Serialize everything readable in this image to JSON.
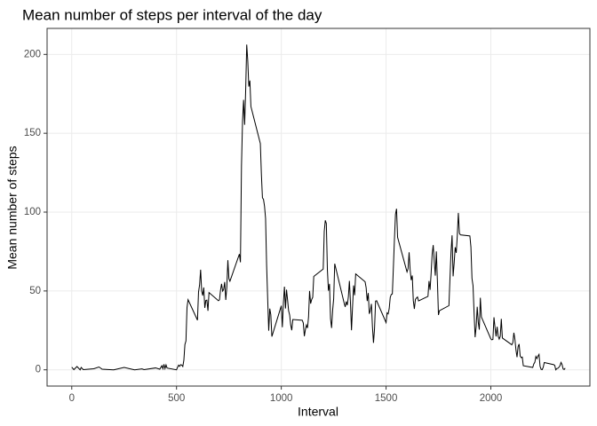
{
  "chart_data": {
    "type": "line",
    "title": "Mean number of steps per interval of the day",
    "x_label": "Interval",
    "y_label": "Mean number of steps",
    "color": "#000000",
    "grid": true,
    "xlim": [
      -117.75,
      2472.75
    ],
    "xticks": [
      0,
      500,
      1000,
      1500,
      2000
    ],
    "ylim": [
      -10.3,
      216.5
    ],
    "yticks": [
      0,
      50,
      100,
      150,
      200
    ],
    "x": [
      0,
      10,
      25,
      40,
      45,
      55,
      105,
      130,
      145,
      200,
      250,
      300,
      335,
      345,
      400,
      420,
      430,
      435,
      440,
      445,
      450,
      455,
      500,
      505,
      510,
      515,
      520,
      525,
      530,
      535,
      540,
      545,
      550,
      555,
      600,
      605,
      610,
      615,
      620,
      625,
      630,
      635,
      640,
      645,
      650,
      655,
      700,
      705,
      710,
      715,
      720,
      725,
      730,
      735,
      740,
      745,
      750,
      755,
      800,
      805,
      810,
      815,
      820,
      825,
      830,
      835,
      840,
      845,
      850,
      855,
      900,
      905,
      910,
      915,
      920,
      925,
      930,
      935,
      940,
      945,
      950,
      955,
      1000,
      1005,
      1010,
      1015,
      1020,
      1025,
      1030,
      1035,
      1040,
      1045,
      1050,
      1055,
      1100,
      1105,
      1110,
      1115,
      1120,
      1125,
      1130,
      1135,
      1140,
      1145,
      1150,
      1155,
      1200,
      1205,
      1210,
      1215,
      1220,
      1225,
      1230,
      1235,
      1240,
      1245,
      1250,
      1255,
      1300,
      1305,
      1310,
      1315,
      1320,
      1325,
      1330,
      1335,
      1340,
      1345,
      1350,
      1355,
      1400,
      1405,
      1410,
      1415,
      1420,
      1425,
      1430,
      1435,
      1440,
      1445,
      1450,
      1455,
      1500,
      1505,
      1510,
      1515,
      1520,
      1525,
      1530,
      1535,
      1540,
      1545,
      1550,
      1555,
      1600,
      1605,
      1610,
      1615,
      1620,
      1625,
      1630,
      1635,
      1640,
      1645,
      1650,
      1655,
      1700,
      1705,
      1710,
      1715,
      1720,
      1725,
      1730,
      1735,
      1740,
      1745,
      1750,
      1755,
      1800,
      1805,
      1810,
      1815,
      1820,
      1825,
      1830,
      1835,
      1840,
      1845,
      1850,
      1855,
      1900,
      1905,
      1910,
      1915,
      1920,
      1925,
      1930,
      1935,
      1940,
      1945,
      1950,
      1955,
      2000,
      2005,
      2010,
      2015,
      2020,
      2025,
      2030,
      2035,
      2040,
      2045,
      2050,
      2055,
      2100,
      2105,
      2110,
      2115,
      2120,
      2125,
      2130,
      2135,
      2140,
      2145,
      2150,
      2155,
      2200,
      2205,
      2210,
      2215,
      2220,
      2225,
      2230,
      2235,
      2240,
      2245,
      2250,
      2255,
      2300,
      2305,
      2310,
      2315,
      2320,
      2325,
      2330,
      2335,
      2340,
      2345,
      2350,
      2355
    ],
    "values": [
      1.7,
      0.1,
      2.1,
      0,
      1.5,
      0.1,
      0.7,
      1.8,
      0.4,
      0,
      1.5,
      0,
      0.6,
      0.1,
      1.2,
      0.4,
      2.6,
      0.7,
      3.5,
      0.8,
      3.1,
      1.1,
      0,
      1.6,
      3,
      2.2,
      3.3,
      3,
      2.1,
      6.1,
      16,
      18.3,
      39.5,
      44.5,
      31.5,
      49.3,
      53.8,
      63.5,
      50,
      47.1,
      52.2,
      39.3,
      44,
      44.2,
      37.4,
      49,
      43.8,
      44.4,
      50.5,
      54.5,
      49.9,
      50.9,
      55.7,
      44.3,
      52.3,
      69.5,
      57.8,
      56.2,
      73.4,
      68.2,
      129.4,
      157.5,
      171.2,
      155.4,
      177.3,
      206.2,
      195.9,
      179.6,
      183.4,
      167,
      143.5,
      124,
      109.1,
      108.1,
      103.7,
      96,
      66.2,
      45.2,
      24.8,
      38.8,
      35,
      21.1,
      40.6,
      27,
      42.4,
      52.7,
      38.9,
      50.8,
      44.3,
      37.4,
      34.7,
      28.3,
      25.1,
      31.9,
      31.4,
      29.7,
      21.3,
      25.5,
      28.4,
      26.5,
      33.4,
      50,
      42,
      44.6,
      46,
      59.2,
      63.9,
      87.7,
      94.8,
      92.8,
      63.4,
      50.2,
      54.5,
      32.4,
      26.5,
      37.7,
      45.1,
      67.3,
      42.3,
      39.9,
      43.3,
      41,
      46.2,
      56.4,
      42.8,
      25.1,
      40,
      53.5,
      47.3,
      60.8,
      55.8,
      52,
      43.6,
      48.7,
      35.5,
      37.5,
      41.8,
      27.5,
      17.1,
      26.1,
      43.6,
      43.8,
      30,
      36.1,
      35.5,
      38.8,
      46,
      47.8,
      48.1,
      65.3,
      82.9,
      98.7,
      102.1,
      84,
      62.1,
      64.1,
      74.5,
      63.2,
      56.9,
      59.8,
      43.9,
      38.6,
      44.7,
      45.5,
      46.2,
      43.7,
      46.6,
      56.3,
      50.7,
      61.2,
      73.4,
      79.1,
      68.9,
      59.7,
      75.1,
      56.5,
      34.8,
      37.5,
      40.7,
      58,
      74.7,
      85.3,
      59.3,
      67.8,
      77.7,
      74.2,
      85.3,
      99.5,
      86.6,
      85.6,
      84.9,
      77.8,
      58,
      53.4,
      36.3,
      20.7,
      27.4,
      40,
      30.2,
      25.5,
      45.7,
      33.5,
      19.6,
      19,
      19.3,
      33.3,
      26.8,
      21.2,
      27.3,
      21.3,
      19.5,
      21.3,
      32.3,
      20.2,
      15.9,
      17.2,
      23.5,
      19.2,
      12.5,
      8,
      14.7,
      16.3,
      8.7,
      7.8,
      8.1,
      2.6,
      1.5,
      3.7,
      4.8,
      8.5,
      7.1,
      8.7,
      9.8,
      2.2,
      0.3,
      0.1,
      1.6,
      4.6,
      3.3,
      2.8,
      0,
      0.8,
      1,
      1.6,
      2.6,
      4.7,
      3.3,
      0.6,
      0.2,
      1.1
    ]
  }
}
